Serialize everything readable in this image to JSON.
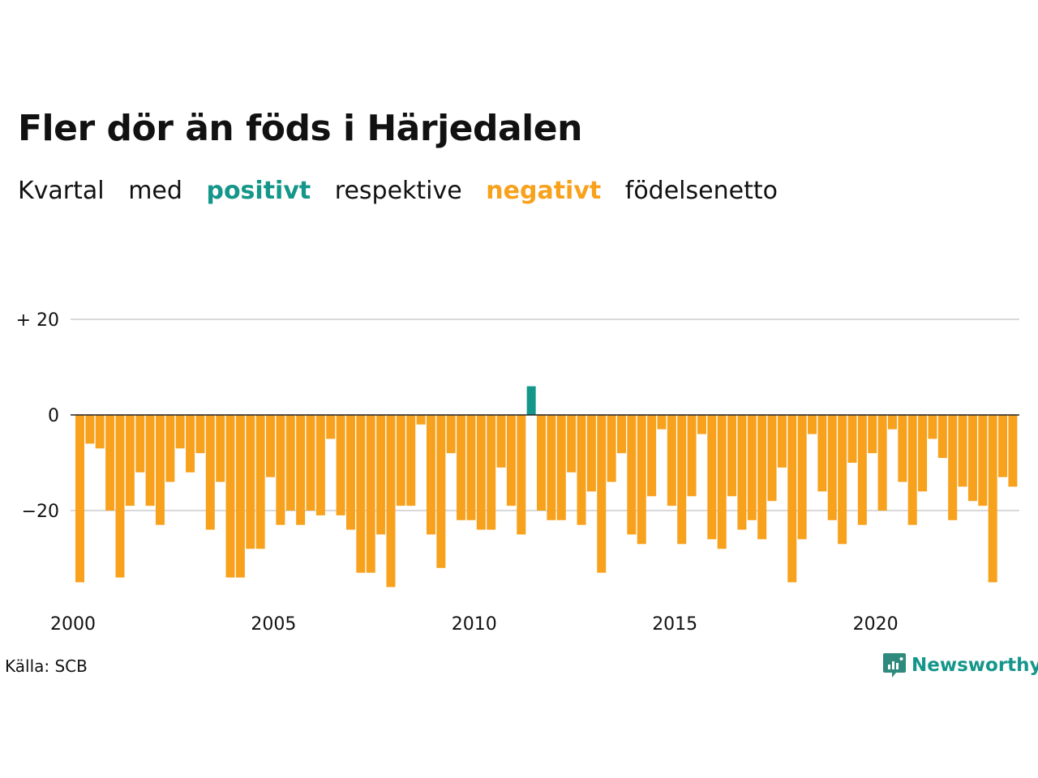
{
  "colors": {
    "positive": "#14968a",
    "negative": "#f7a11c",
    "grid": "#d9d9d9",
    "baseline": "#222222"
  },
  "header": {
    "title": "Fler dör än föds i Härjedalen",
    "subtitle": {
      "w1": "Kvartal",
      "w2": "med",
      "w3": "positivt",
      "w4": "respektive",
      "w5": "negativt",
      "w6": "födelsenetto"
    }
  },
  "footer": {
    "source": "Källa: SCB",
    "brand": "Newsworthy",
    "brand_icon": "newsworthy-logo-icon"
  },
  "chart_data": {
    "type": "bar",
    "title": "Fler dör än föds i Härjedalen",
    "subtitle": "Kvartal med positivt respektive negativt födelsenetto",
    "xlabel": "",
    "ylabel": "",
    "x_start_year": 2000,
    "periods_per_year": 4,
    "ylim": [
      -36,
      20
    ],
    "y_ticks": [
      20,
      0,
      -20
    ],
    "y_tick_labels": [
      "+ 20",
      "0",
      "−20"
    ],
    "x_ticks": [
      "2000",
      "2005",
      "2010",
      "2015",
      "2020"
    ],
    "grid": true,
    "legend": "none",
    "values": [
      -35,
      -6,
      -7,
      -20,
      -34,
      -19,
      -12,
      -19,
      -23,
      -14,
      -7,
      -12,
      -8,
      -24,
      -14,
      -34,
      -34,
      -28,
      -28,
      -13,
      -23,
      -20,
      -23,
      -20,
      -21,
      -5,
      -21,
      -24,
      -33,
      -33,
      -25,
      -36,
      -19,
      -19,
      -2,
      -25,
      -32,
      -8,
      -22,
      -22,
      -24,
      -24,
      -11,
      -19,
      -25,
      6,
      -20,
      -22,
      -22,
      -12,
      -23,
      -16,
      -33,
      -14,
      -8,
      -25,
      -27,
      -17,
      -3,
      -19,
      -27,
      -17,
      -4,
      -26,
      -28,
      -17,
      -24,
      -22,
      -26,
      -18,
      -11,
      -35,
      -26,
      -4,
      -16,
      -22,
      -27,
      -10,
      -23,
      -8,
      -20,
      -3,
      -14,
      -23,
      -16,
      -5,
      -9,
      -22,
      -15,
      -18,
      -19,
      -35,
      -13,
      -15
    ]
  }
}
